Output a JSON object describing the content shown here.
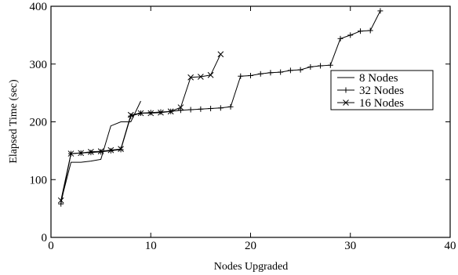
{
  "chart_data": {
    "type": "line",
    "title": "",
    "xlabel": "Nodes Upgraded",
    "ylabel": "Elapsed Time (sec)",
    "xlim": [
      0,
      40
    ],
    "ylim": [
      0,
      400
    ],
    "xticks": [
      0,
      10,
      20,
      30,
      40
    ],
    "yticks": [
      0,
      100,
      200,
      300,
      400
    ],
    "grid": false,
    "legend_position": "right",
    "series": [
      {
        "name": "8 Nodes",
        "marker": "none",
        "color": "#000000",
        "points": [
          [
            1,
            62
          ],
          [
            2,
            130
          ],
          [
            3,
            130
          ],
          [
            4,
            132
          ],
          [
            5,
            135
          ],
          [
            6,
            193
          ],
          [
            7,
            200
          ],
          [
            8,
            200
          ],
          [
            9,
            236
          ]
        ]
      },
      {
        "name": "32 Nodes",
        "marker": "plus",
        "color": "#000000",
        "points": [
          [
            1,
            58
          ],
          [
            2,
            145
          ],
          [
            3,
            146
          ],
          [
            4,
            147
          ],
          [
            5,
            148
          ],
          [
            6,
            150
          ],
          [
            7,
            152
          ],
          [
            8,
            210
          ],
          [
            9,
            215
          ],
          [
            10,
            216
          ],
          [
            11,
            217
          ],
          [
            12,
            218
          ],
          [
            13,
            220
          ],
          [
            14,
            221
          ],
          [
            15,
            222
          ],
          [
            16,
            223
          ],
          [
            17,
            224
          ],
          [
            18,
            226
          ],
          [
            19,
            279
          ],
          [
            20,
            280
          ],
          [
            21,
            283
          ],
          [
            22,
            285
          ],
          [
            23,
            286
          ],
          [
            24,
            289
          ],
          [
            25,
            290
          ],
          [
            26,
            295
          ],
          [
            27,
            297
          ],
          [
            28,
            298
          ],
          [
            29,
            344
          ],
          [
            30,
            350
          ],
          [
            31,
            357
          ],
          [
            32,
            358
          ],
          [
            33,
            392
          ]
        ]
      },
      {
        "name": "16 Nodes",
        "marker": "x",
        "color": "#000000",
        "points": [
          [
            1,
            64
          ],
          [
            2,
            145
          ],
          [
            3,
            146
          ],
          [
            4,
            148
          ],
          [
            5,
            149
          ],
          [
            6,
            151
          ],
          [
            7,
            153
          ],
          [
            8,
            212
          ],
          [
            9,
            215
          ],
          [
            10,
            215
          ],
          [
            11,
            216
          ],
          [
            12,
            218
          ],
          [
            13,
            225
          ],
          [
            14,
            277
          ],
          [
            15,
            278
          ],
          [
            16,
            281
          ],
          [
            17,
            317
          ]
        ]
      }
    ]
  }
}
